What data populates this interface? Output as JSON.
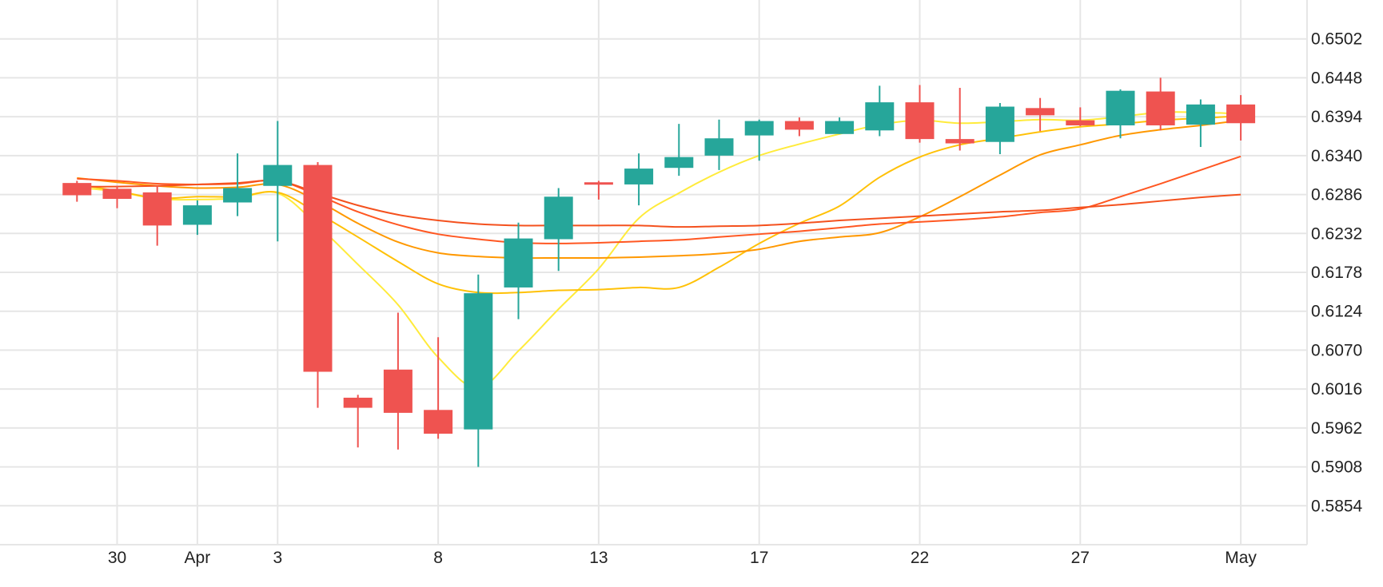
{
  "chart_data": {
    "type": "candlestick",
    "x_tick_labels": [
      {
        "label": "30",
        "day": 1
      },
      {
        "label": "Apr",
        "day": 3
      },
      {
        "label": "3",
        "day": 5
      },
      {
        "label": "8",
        "day": 9
      },
      {
        "label": "13",
        "day": 13
      },
      {
        "label": "17",
        "day": 17
      },
      {
        "label": "22",
        "day": 21
      },
      {
        "label": "27",
        "day": 25
      },
      {
        "label": "May",
        "day": 29
      }
    ],
    "y_tick_labels": [
      "0.6502",
      "0.6448",
      "0.6394",
      "0.6340",
      "0.6286",
      "0.6232",
      "0.6178",
      "0.6124",
      "0.6070",
      "0.6016",
      "0.5962",
      "0.5908",
      "0.5854"
    ],
    "y_ticks": [
      0.6502,
      0.6448,
      0.6394,
      0.634,
      0.6286,
      0.6232,
      0.6178,
      0.6124,
      0.607,
      0.6016,
      0.5962,
      0.5908,
      0.5854
    ],
    "ylim": [
      0.58,
      0.6556
    ],
    "xlim": [
      -0.5,
      29.3
    ],
    "grid": true,
    "colors": {
      "up": "#26a69a",
      "down": "#ef5350",
      "grid": "#e6e6e6",
      "ma_lines": [
        "#ffeb3b",
        "#ffc107",
        "#ff9800",
        "#ff5722",
        "#f4511e"
      ]
    },
    "candles": [
      {
        "day": 0,
        "open": 0.6302,
        "high": 0.6305,
        "low": 0.6276,
        "close": 0.6285
      },
      {
        "day": 1,
        "open": 0.6294,
        "high": 0.6298,
        "low": 0.6267,
        "close": 0.628
      },
      {
        "day": 2,
        "open": 0.6289,
        "high": 0.6298,
        "low": 0.6215,
        "close": 0.6243
      },
      {
        "day": 3,
        "open": 0.6244,
        "high": 0.6278,
        "low": 0.623,
        "close": 0.6271
      },
      {
        "day": 4,
        "open": 0.6275,
        "high": 0.6343,
        "low": 0.6256,
        "close": 0.6295
      },
      {
        "day": 5,
        "open": 0.6298,
        "high": 0.6388,
        "low": 0.6221,
        "close": 0.6327
      },
      {
        "day": 6,
        "open": 0.6327,
        "high": 0.6331,
        "low": 0.599,
        "close": 0.604
      },
      {
        "day": 7,
        "open": 0.6004,
        "high": 0.6008,
        "low": 0.5935,
        "close": 0.599
      },
      {
        "day": 8,
        "open": 0.6043,
        "high": 0.6122,
        "low": 0.5932,
        "close": 0.5983
      },
      {
        "day": 9,
        "open": 0.5987,
        "high": 0.6088,
        "low": 0.5947,
        "close": 0.5954
      },
      {
        "day": 10,
        "open": 0.596,
        "high": 0.6175,
        "low": 0.5908,
        "close": 0.6149
      },
      {
        "day": 11,
        "open": 0.6157,
        "high": 0.6247,
        "low": 0.6113,
        "close": 0.6225
      },
      {
        "day": 12,
        "open": 0.6224,
        "high": 0.6295,
        "low": 0.618,
        "close": 0.6283
      },
      {
        "day": 13,
        "open": 0.6303,
        "high": 0.6305,
        "low": 0.6279,
        "close": 0.6301
      },
      {
        "day": 14,
        "open": 0.63,
        "high": 0.6343,
        "low": 0.6271,
        "close": 0.6322
      },
      {
        "day": 15,
        "open": 0.6323,
        "high": 0.6384,
        "low": 0.6312,
        "close": 0.6338
      },
      {
        "day": 16,
        "open": 0.634,
        "high": 0.639,
        "low": 0.632,
        "close": 0.6364
      },
      {
        "day": 17,
        "open": 0.6368,
        "high": 0.639,
        "low": 0.6333,
        "close": 0.6388
      },
      {
        "day": 18,
        "open": 0.6388,
        "high": 0.6393,
        "low": 0.6367,
        "close": 0.6376
      },
      {
        "day": 19,
        "open": 0.637,
        "high": 0.6393,
        "low": 0.637,
        "close": 0.6388
      },
      {
        "day": 20,
        "open": 0.6375,
        "high": 0.6437,
        "low": 0.6367,
        "close": 0.6414
      },
      {
        "day": 21,
        "open": 0.6414,
        "high": 0.6438,
        "low": 0.6358,
        "close": 0.6363
      },
      {
        "day": 22,
        "open": 0.6363,
        "high": 0.6434,
        "low": 0.6347,
        "close": 0.6357
      },
      {
        "day": 23,
        "open": 0.6359,
        "high": 0.6413,
        "low": 0.6342,
        "close": 0.6408
      },
      {
        "day": 24,
        "open": 0.6406,
        "high": 0.642,
        "low": 0.6374,
        "close": 0.6396
      },
      {
        "day": 25,
        "open": 0.6389,
        "high": 0.6407,
        "low": 0.6381,
        "close": 0.6382
      },
      {
        "day": 26,
        "open": 0.6382,
        "high": 0.6432,
        "low": 0.6364,
        "close": 0.643
      },
      {
        "day": 27,
        "open": 0.6429,
        "high": 0.6448,
        "low": 0.6375,
        "close": 0.6382
      },
      {
        "day": 28,
        "open": 0.6383,
        "high": 0.6418,
        "low": 0.6352,
        "close": 0.6411
      },
      {
        "day": 29,
        "open": 0.6411,
        "high": 0.6424,
        "low": 0.6361,
        "close": 0.6385
      }
    ],
    "moving_averages": [
      {
        "color": "#ffeb3b",
        "points": [
          [
            0,
            0.6296
          ],
          [
            1,
            0.629
          ],
          [
            2,
            0.628
          ],
          [
            3,
            0.6279
          ],
          [
            4,
            0.6281
          ],
          [
            5,
            0.6288
          ],
          [
            6,
            0.6243
          ],
          [
            7,
            0.6189
          ],
          [
            8,
            0.6133
          ],
          [
            9,
            0.606
          ],
          [
            10,
            0.6018
          ],
          [
            11,
            0.6069
          ],
          [
            12,
            0.6127
          ],
          [
            13,
            0.6183
          ],
          [
            14,
            0.6253
          ],
          [
            15,
            0.6288
          ],
          [
            16,
            0.6317
          ],
          [
            17,
            0.634
          ],
          [
            18,
            0.6356
          ],
          [
            19,
            0.637
          ],
          [
            20,
            0.6383
          ],
          [
            21,
            0.6389
          ],
          [
            22,
            0.6385
          ],
          [
            23,
            0.6387
          ],
          [
            24,
            0.639
          ],
          [
            25,
            0.6389
          ],
          [
            26,
            0.6394
          ],
          [
            27,
            0.64
          ],
          [
            28,
            0.64
          ],
          [
            29,
            0.6398
          ]
        ]
      },
      {
        "color": "#ffc107",
        "points": [
          [
            0,
            0.63
          ],
          [
            1,
            0.6291
          ],
          [
            2,
            0.6281
          ],
          [
            3,
            0.6283
          ],
          [
            4,
            0.6283
          ],
          [
            5,
            0.6289
          ],
          [
            6,
            0.626
          ],
          [
            7,
            0.6227
          ],
          [
            8,
            0.6193
          ],
          [
            9,
            0.6162
          ],
          [
            10,
            0.615
          ],
          [
            11,
            0.615
          ],
          [
            12,
            0.6153
          ],
          [
            13,
            0.6154
          ],
          [
            14,
            0.6157
          ],
          [
            15,
            0.6157
          ],
          [
            16,
            0.6185
          ],
          [
            17,
            0.6218
          ],
          [
            18,
            0.6246
          ],
          [
            19,
            0.627
          ],
          [
            20,
            0.631
          ],
          [
            21,
            0.6338
          ],
          [
            22,
            0.6355
          ],
          [
            23,
            0.6364
          ],
          [
            24,
            0.6373
          ],
          [
            25,
            0.638
          ],
          [
            26,
            0.6384
          ],
          [
            27,
            0.6389
          ],
          [
            28,
            0.6392
          ],
          [
            29,
            0.6395
          ]
        ]
      },
      {
        "color": "#ff9800",
        "points": [
          [
            0,
            0.6309
          ],
          [
            1,
            0.6303
          ],
          [
            2,
            0.6298
          ],
          [
            3,
            0.6295
          ],
          [
            4,
            0.6296
          ],
          [
            5,
            0.63
          ],
          [
            6,
            0.6277
          ],
          [
            7,
            0.6246
          ],
          [
            8,
            0.622
          ],
          [
            9,
            0.6205
          ],
          [
            10,
            0.62
          ],
          [
            11,
            0.6198
          ],
          [
            12,
            0.6198
          ],
          [
            13,
            0.6198
          ],
          [
            14,
            0.6199
          ],
          [
            15,
            0.6201
          ],
          [
            16,
            0.6204
          ],
          [
            17,
            0.621
          ],
          [
            18,
            0.6221
          ],
          [
            19,
            0.6227
          ],
          [
            20,
            0.6233
          ],
          [
            21,
            0.6255
          ],
          [
            22,
            0.6283
          ],
          [
            23,
            0.6313
          ],
          [
            24,
            0.6341
          ],
          [
            25,
            0.6355
          ],
          [
            26,
            0.6368
          ],
          [
            27,
            0.6376
          ],
          [
            28,
            0.6382
          ],
          [
            29,
            0.6389
          ]
        ]
      },
      {
        "color": "#ff5722",
        "points": [
          [
            0,
            0.6308
          ],
          [
            1,
            0.6305
          ],
          [
            2,
            0.6301
          ],
          [
            3,
            0.63
          ],
          [
            4,
            0.6301
          ],
          [
            5,
            0.6305
          ],
          [
            6,
            0.6285
          ],
          [
            7,
            0.6262
          ],
          [
            8,
            0.6244
          ],
          [
            9,
            0.6231
          ],
          [
            10,
            0.6224
          ],
          [
            11,
            0.6219
          ],
          [
            12,
            0.6218
          ],
          [
            13,
            0.6219
          ],
          [
            14,
            0.6221
          ],
          [
            15,
            0.6223
          ],
          [
            16,
            0.6227
          ],
          [
            17,
            0.6231
          ],
          [
            18,
            0.6235
          ],
          [
            19,
            0.624
          ],
          [
            20,
            0.6245
          ],
          [
            21,
            0.6248
          ],
          [
            22,
            0.6251
          ],
          [
            23,
            0.6255
          ],
          [
            24,
            0.6261
          ],
          [
            25,
            0.6266
          ],
          [
            26,
            0.6283
          ],
          [
            27,
            0.6301
          ],
          [
            28,
            0.632
          ],
          [
            29,
            0.6339
          ]
        ]
      },
      {
        "color": "#f4511e",
        "points": [
          [
            0,
            0.6297
          ],
          [
            1,
            0.6297
          ],
          [
            2,
            0.6298
          ],
          [
            3,
            0.63
          ],
          [
            4,
            0.6302
          ],
          [
            5,
            0.6305
          ],
          [
            6,
            0.6288
          ],
          [
            7,
            0.6271
          ],
          [
            8,
            0.6258
          ],
          [
            9,
            0.625
          ],
          [
            10,
            0.6245
          ],
          [
            11,
            0.6243
          ],
          [
            12,
            0.6243
          ],
          [
            13,
            0.6243
          ],
          [
            14,
            0.6243
          ],
          [
            15,
            0.6241
          ],
          [
            16,
            0.6242
          ],
          [
            17,
            0.6243
          ],
          [
            18,
            0.6246
          ],
          [
            19,
            0.625
          ],
          [
            20,
            0.6253
          ],
          [
            21,
            0.6256
          ],
          [
            22,
            0.6259
          ],
          [
            23,
            0.6262
          ],
          [
            24,
            0.6264
          ],
          [
            25,
            0.6268
          ],
          [
            26,
            0.6272
          ],
          [
            27,
            0.6277
          ],
          [
            28,
            0.6282
          ],
          [
            29,
            0.6286
          ]
        ]
      }
    ]
  }
}
